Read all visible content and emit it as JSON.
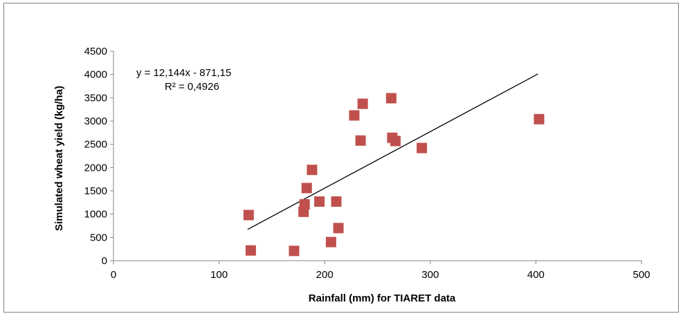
{
  "chart_data": {
    "type": "scatter",
    "xlabel": "Rainfall (mm) for TIARET data",
    "ylabel": "Simulated wheat yield (kg/ha)",
    "xlim": [
      0,
      500
    ],
    "ylim": [
      0,
      4500
    ],
    "xticks": [
      0,
      100,
      200,
      300,
      400,
      500
    ],
    "yticks": [
      0,
      500,
      1000,
      1500,
      2000,
      2500,
      3000,
      3500,
      4000,
      4500
    ],
    "grid": false,
    "marker_color": "#c0504d",
    "line_color": "#000000",
    "points": [
      {
        "x": 128,
        "y": 980
      },
      {
        "x": 130,
        "y": 220
      },
      {
        "x": 171,
        "y": 210
      },
      {
        "x": 180,
        "y": 1050
      },
      {
        "x": 181,
        "y": 1210
      },
      {
        "x": 183,
        "y": 1560
      },
      {
        "x": 188,
        "y": 1950
      },
      {
        "x": 195,
        "y": 1270
      },
      {
        "x": 206,
        "y": 400
      },
      {
        "x": 211,
        "y": 1270
      },
      {
        "x": 213,
        "y": 700
      },
      {
        "x": 228,
        "y": 3120
      },
      {
        "x": 234,
        "y": 2580
      },
      {
        "x": 236,
        "y": 3370
      },
      {
        "x": 263,
        "y": 3490
      },
      {
        "x": 264,
        "y": 2640
      },
      {
        "x": 267,
        "y": 2570
      },
      {
        "x": 292,
        "y": 2420
      },
      {
        "x": 403,
        "y": 3040
      }
    ],
    "trendline": {
      "slope": 12.144,
      "intercept": -871.15,
      "x_range": [
        127,
        402
      ],
      "equation": "y = 12,144x - 871,15",
      "r_squared": "R² = 0,4926"
    }
  }
}
